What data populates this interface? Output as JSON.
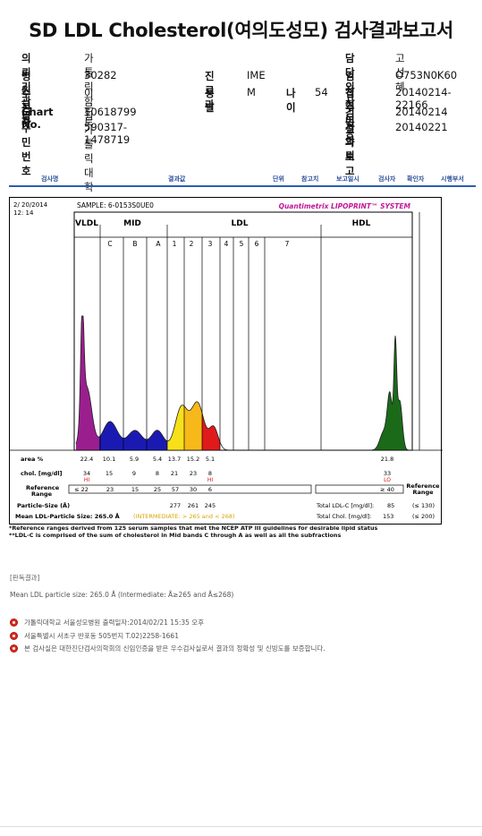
{
  "title": "SD LDL Cholesterol(여의도성모) 검사결과보고서",
  "info": {
    "org_label": "의뢰기관명",
    "org_value": "가톨릭학원가톨릭대학교병동센트 / -ㅋ",
    "doctor_label": "담당의사",
    "doctor_value": "고선혜",
    "hosp_code_label": "병원코드",
    "hosp_code_value": "30282",
    "dept_label": "진료과",
    "dept_value": "IME",
    "clinical_label": "임상정보",
    "clinical_value": "O753N0K60",
    "patient_label": "수진자",
    "patient_value": "이문로",
    "sex_label": "성별",
    "sex_value": "M",
    "age_label": "나이",
    "age_value": "54",
    "receipt_label": "접수번호",
    "receipt_value": "20140214-22166",
    "chart_label": "Chart No.",
    "chart_value": "10618799",
    "req_date_label": "검사의뢰",
    "req_date_value": "20140214",
    "id_label": "주민번호",
    "id_value": "590317-1478719",
    "report_date_label": "결과보고",
    "report_date_value": "20140221"
  },
  "tabs": [
    "검사명",
    "결과값",
    "단위",
    "참고치",
    "보고일시",
    "검사자",
    "확인자",
    "시행부서"
  ],
  "report": {
    "date": "2/ 20/2014",
    "time": "12: 14",
    "sample": "SAMPLE:   6-0153S0UE0",
    "brand": "Quantimetrix LIPOPRINT™ SYSTEM",
    "header_groups": [
      "VLDL",
      "MID",
      "LDL",
      "HDL"
    ],
    "bands": [
      "C",
      "B",
      "A",
      "1",
      "2",
      "3",
      "4",
      "5",
      "6",
      "7"
    ],
    "area_label": "area %",
    "area_values": [
      "22.4",
      "10.1",
      "5.9",
      "5.4",
      "13.7",
      "15.2",
      "5.1"
    ],
    "area_hdl": "21.8",
    "chol_label": "chol. [mg/dl]",
    "chol_values": [
      "34",
      "15",
      "9",
      "8",
      "21",
      "23",
      "8"
    ],
    "chol_flags": [
      "HI",
      "",
      "",
      "",
      "",
      "",
      "HI"
    ],
    "chol_hdl": "33",
    "chol_hdl_flag": "LO",
    "ref_label_1": "Reference",
    "ref_label_2": "Range",
    "ref_values": [
      "≤ 22",
      "23",
      "15",
      "25",
      "57",
      "30",
      "6"
    ],
    "ref_hdl": "≥ 40",
    "ref_right_1": "Reference",
    "ref_right_2": "Range",
    "particle_label": "Particle-Size (Å)",
    "particle_values": [
      "277",
      "261",
      "245"
    ],
    "mean_label": "Mean LDL-Particle Size:  265.0 Å",
    "mean_note": "(INTERMEDIATE: > 265 and < 268)",
    "total_ldl_label": "Total LDL-C [mg/dl]:",
    "total_ldl_value": "85",
    "total_ldl_ref": "(≤ 130)",
    "total_chol_label": "Total Chol. [mg/dl]:",
    "total_chol_value": "153",
    "total_chol_ref": "(≤ 200)"
  },
  "chart_data": {
    "type": "area",
    "title": "Quantimetrix LIPOPRINT SYSTEM",
    "xlabel": "",
    "ylabel": "",
    "bands": [
      "VLDL",
      "C",
      "B",
      "A",
      "1",
      "2",
      "3",
      "HDL"
    ],
    "area_percent": [
      22.4,
      10.1,
      5.9,
      5.4,
      13.7,
      15.2,
      5.1,
      21.8
    ],
    "cholesterol_mg_dl": [
      34,
      15,
      9,
      8,
      21,
      23,
      8,
      33
    ],
    "colors": [
      "#9b1e8e",
      "#1a1ab3",
      "#1a1ab3",
      "#1a1ab3",
      "#f7e01a",
      "#f7b81a",
      "#e01a1a",
      "#1a6a1a"
    ],
    "grid": false
  },
  "notes": [
    "*Reference ranges derived from 125 serum samples that met the NCEP ATP III guidelines for desirable lipid status",
    "**LDL-C is comprised of the sum of cholesterol in Mid bands C through A as well as all the subfractions"
  ],
  "result_head": "[판독결과]",
  "result_line": "Mean LDL particle size: 265.0 Å  (Intermediate: Å≥265 and Å≤268)",
  "footer": [
    "가톨릭대학교 서울성모병원        출력일자:2014/02/21 15:35 오후",
    "서울특별시 서초구 반포동 505번지 T.02)2258-1661",
    "본 검사실은 대한진단검사의학회의 신임인증을 받은 우수검사실로서 결과의 정확성 및 신빙도를 보증합니다."
  ]
}
